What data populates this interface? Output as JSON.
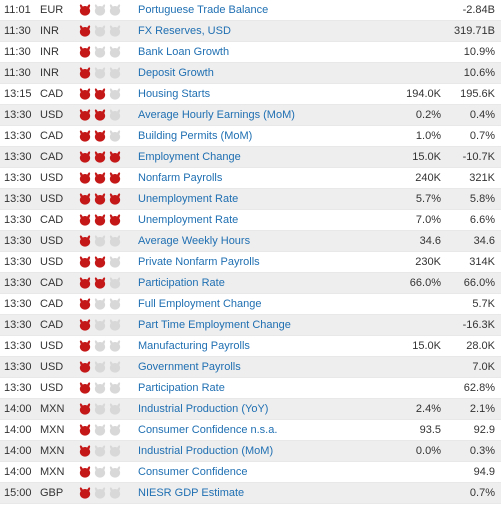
{
  "colors": {
    "link": "#1f6fb2",
    "text": "#333333",
    "alt_bg": "#eeeeee",
    "bull_on": "#c41717",
    "bull_off": "#d8d8d8",
    "border": "#e8e8e8"
  },
  "rows": [
    {
      "time": "11:01",
      "cur": "EUR",
      "imp": 1,
      "event": "Portuguese Trade Balance",
      "v1": "",
      "v2": "-2.84B"
    },
    {
      "time": "11:30",
      "cur": "INR",
      "imp": 1,
      "event": "FX Reserves, USD",
      "v1": "",
      "v2": "319.71B"
    },
    {
      "time": "11:30",
      "cur": "INR",
      "imp": 1,
      "event": "Bank Loan Growth",
      "v1": "",
      "v2": "10.9%"
    },
    {
      "time": "11:30",
      "cur": "INR",
      "imp": 1,
      "event": "Deposit Growth",
      "v1": "",
      "v2": "10.6%"
    },
    {
      "time": "13:15",
      "cur": "CAD",
      "imp": 2,
      "event": "Housing Starts",
      "v1": "194.0K",
      "v2": "195.6K"
    },
    {
      "time": "13:30",
      "cur": "USD",
      "imp": 2,
      "event": "Average Hourly Earnings (MoM)",
      "v1": "0.2%",
      "v2": "0.4%"
    },
    {
      "time": "13:30",
      "cur": "CAD",
      "imp": 2,
      "event": "Building Permits (MoM)",
      "v1": "1.0%",
      "v2": "0.7%"
    },
    {
      "time": "13:30",
      "cur": "CAD",
      "imp": 3,
      "event": "Employment Change",
      "v1": "15.0K",
      "v2": "-10.7K"
    },
    {
      "time": "13:30",
      "cur": "USD",
      "imp": 3,
      "event": "Nonfarm Payrolls",
      "v1": "240K",
      "v2": "321K"
    },
    {
      "time": "13:30",
      "cur": "USD",
      "imp": 3,
      "event": "Unemployment Rate",
      "v1": "5.7%",
      "v2": "5.8%"
    },
    {
      "time": "13:30",
      "cur": "CAD",
      "imp": 3,
      "event": "Unemployment Rate",
      "v1": "7.0%",
      "v2": "6.6%"
    },
    {
      "time": "13:30",
      "cur": "USD",
      "imp": 1,
      "event": "Average Weekly Hours",
      "v1": "34.6",
      "v2": "34.6"
    },
    {
      "time": "13:30",
      "cur": "USD",
      "imp": 2,
      "event": "Private Nonfarm Payrolls",
      "v1": "230K",
      "v2": "314K"
    },
    {
      "time": "13:30",
      "cur": "CAD",
      "imp": 2,
      "event": "Participation Rate",
      "v1": "66.0%",
      "v2": "66.0%"
    },
    {
      "time": "13:30",
      "cur": "CAD",
      "imp": 1,
      "event": "Full Employment Change",
      "v1": "",
      "v2": "5.7K"
    },
    {
      "time": "13:30",
      "cur": "CAD",
      "imp": 1,
      "event": "Part Time Employment Change",
      "v1": "",
      "v2": "-16.3K"
    },
    {
      "time": "13:30",
      "cur": "USD",
      "imp": 1,
      "event": "Manufacturing Payrolls",
      "v1": "15.0K",
      "v2": "28.0K"
    },
    {
      "time": "13:30",
      "cur": "USD",
      "imp": 1,
      "event": "Government Payrolls",
      "v1": "",
      "v2": "7.0K"
    },
    {
      "time": "13:30",
      "cur": "USD",
      "imp": 1,
      "event": "Participation Rate",
      "v1": "",
      "v2": "62.8%"
    },
    {
      "time": "14:00",
      "cur": "MXN",
      "imp": 1,
      "event": "Industrial Production (YoY)",
      "v1": "2.4%",
      "v2": "2.1%"
    },
    {
      "time": "14:00",
      "cur": "MXN",
      "imp": 1,
      "event": "Consumer Confidence n.s.a.",
      "v1": "93.5",
      "v2": "92.9"
    },
    {
      "time": "14:00",
      "cur": "MXN",
      "imp": 1,
      "event": "Industrial Production (MoM)",
      "v1": "0.0%",
      "v2": "0.3%"
    },
    {
      "time": "14:00",
      "cur": "MXN",
      "imp": 1,
      "event": "Consumer Confidence",
      "v1": "",
      "v2": "94.9"
    },
    {
      "time": "15:00",
      "cur": "GBP",
      "imp": 1,
      "event": "NIESR GDP Estimate",
      "v1": "",
      "v2": "0.7%"
    }
  ]
}
